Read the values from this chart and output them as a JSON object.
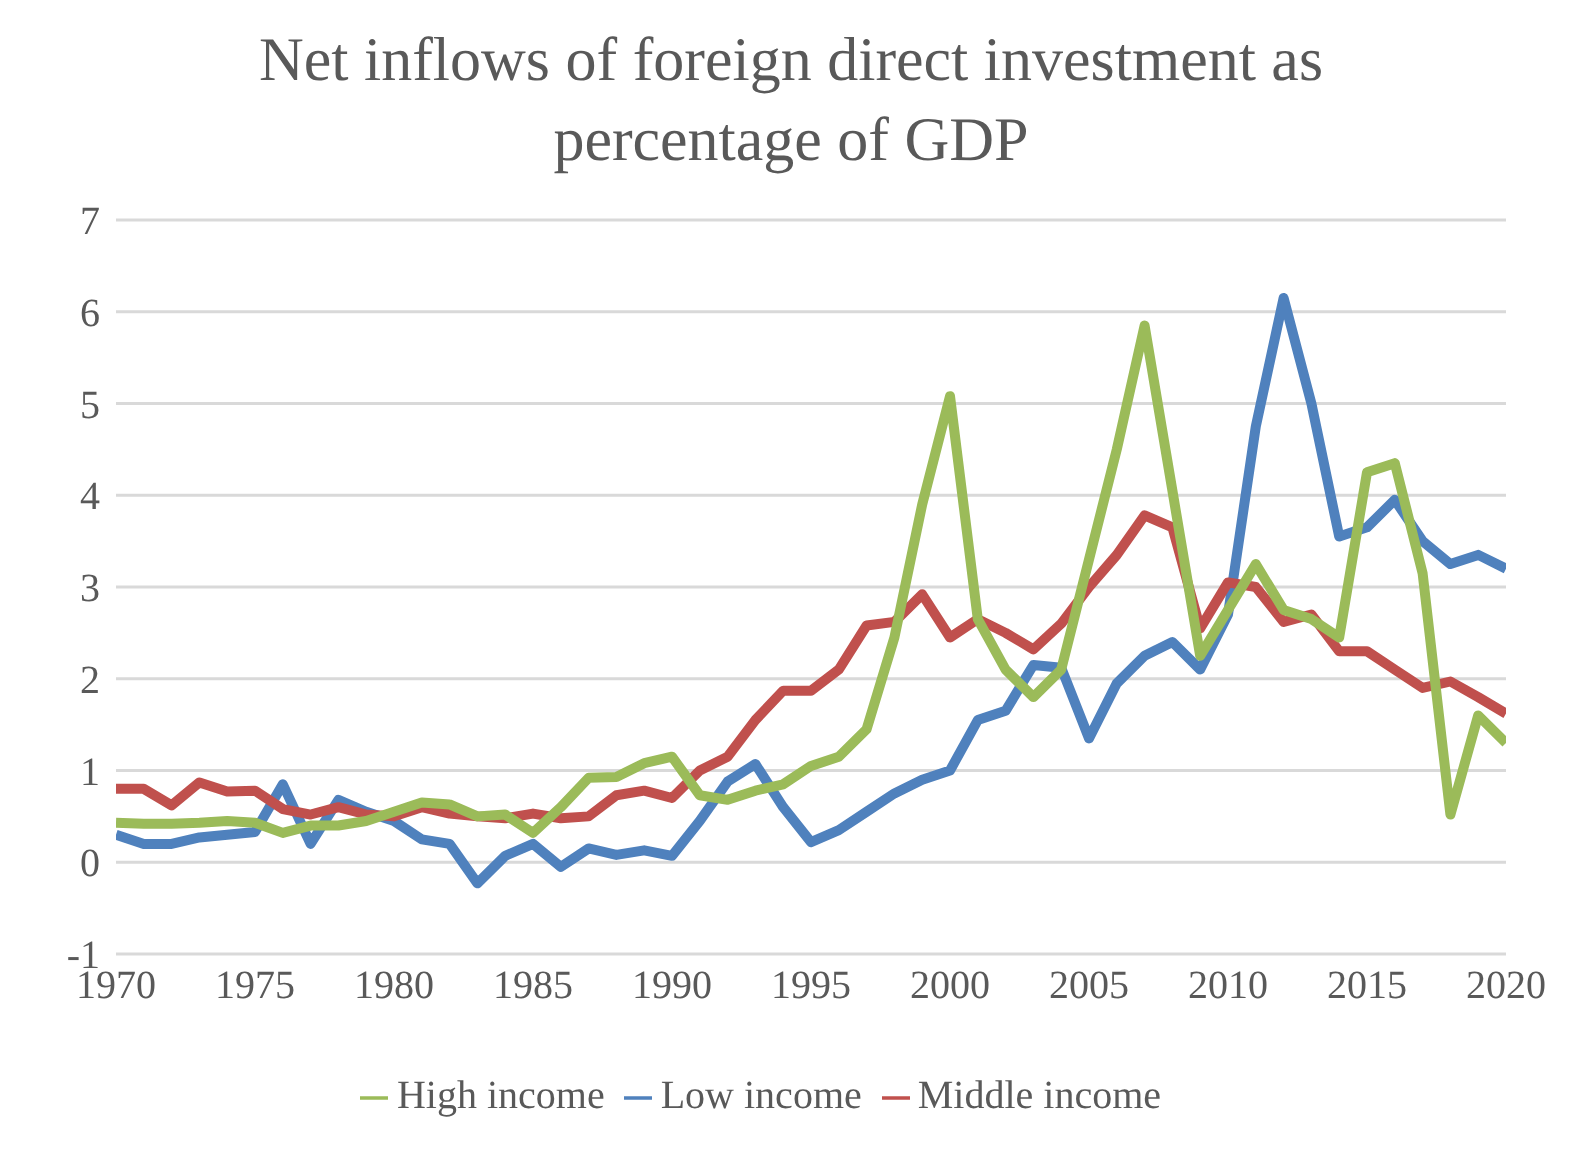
{
  "chart_data": {
    "type": "line",
    "title": "Net inflows of foreign direct investment as percentage of GDP",
    "x": [
      1970,
      1971,
      1972,
      1973,
      1974,
      1975,
      1976,
      1977,
      1978,
      1979,
      1980,
      1981,
      1982,
      1983,
      1984,
      1985,
      1986,
      1987,
      1988,
      1989,
      1990,
      1991,
      1992,
      1993,
      1994,
      1995,
      1996,
      1997,
      1998,
      1999,
      2000,
      2001,
      2002,
      2003,
      2004,
      2005,
      2006,
      2007,
      2008,
      2009,
      2010,
      2011,
      2012,
      2013,
      2014,
      2015,
      2016,
      2017,
      2018,
      2019,
      2020
    ],
    "series": [
      {
        "name": "Low income",
        "color": "#4f81bd",
        "values": [
          0.3,
          0.2,
          0.2,
          0.27,
          0.3,
          0.33,
          0.85,
          0.2,
          0.68,
          0.55,
          0.45,
          0.25,
          0.2,
          -0.23,
          0.07,
          0.2,
          -0.05,
          0.15,
          0.08,
          0.13,
          0.07,
          0.45,
          0.88,
          1.07,
          0.6,
          0.22,
          0.35,
          0.55,
          0.75,
          0.9,
          1.0,
          1.55,
          1.65,
          2.15,
          2.12,
          1.35,
          1.95,
          2.25,
          2.4,
          2.1,
          2.7,
          4.75,
          6.15,
          5.0,
          3.55,
          3.65,
          3.95,
          3.5,
          3.25,
          3.35,
          3.2
        ]
      },
      {
        "name": "Middle income",
        "color": "#c0504d",
        "values": [
          0.8,
          0.8,
          0.62,
          0.87,
          0.77,
          0.78,
          0.58,
          0.52,
          0.6,
          0.52,
          0.5,
          0.6,
          0.53,
          0.5,
          0.48,
          0.53,
          0.48,
          0.5,
          0.73,
          0.78,
          0.7,
          1.0,
          1.15,
          1.55,
          1.87,
          1.87,
          2.1,
          2.58,
          2.62,
          2.92,
          2.45,
          2.65,
          2.5,
          2.32,
          2.6,
          3.0,
          3.35,
          3.78,
          3.65,
          2.55,
          3.05,
          3.0,
          2.62,
          2.7,
          2.3,
          2.3,
          2.1,
          1.9,
          1.97,
          1.8,
          1.62
        ]
      },
      {
        "name": "High income",
        "color": "#9bbb59",
        "values": [
          0.43,
          0.42,
          0.42,
          0.43,
          0.45,
          0.43,
          0.32,
          0.4,
          0.4,
          0.45,
          0.55,
          0.65,
          0.63,
          0.5,
          0.52,
          0.32,
          0.6,
          0.92,
          0.93,
          1.08,
          1.15,
          0.73,
          0.68,
          0.78,
          0.85,
          1.05,
          1.15,
          1.45,
          2.45,
          3.9,
          5.08,
          2.65,
          2.1,
          1.8,
          2.1,
          3.3,
          4.5,
          5.85,
          4.05,
          2.25,
          2.75,
          3.25,
          2.75,
          2.65,
          2.45,
          4.25,
          4.35,
          3.15,
          0.52,
          1.6,
          1.3
        ]
      }
    ],
    "xlim": [
      1970,
      2020
    ],
    "xticks": [
      1970,
      1975,
      1980,
      1985,
      1990,
      1995,
      2000,
      2005,
      2010,
      2015,
      2020
    ],
    "ylim": [
      -1,
      7
    ],
    "yticks": [
      -1,
      0,
      1,
      2,
      3,
      4,
      5,
      6,
      7
    ],
    "grid": "y",
    "legend": "bottom",
    "marker": "none",
    "line_style": "solid"
  }
}
